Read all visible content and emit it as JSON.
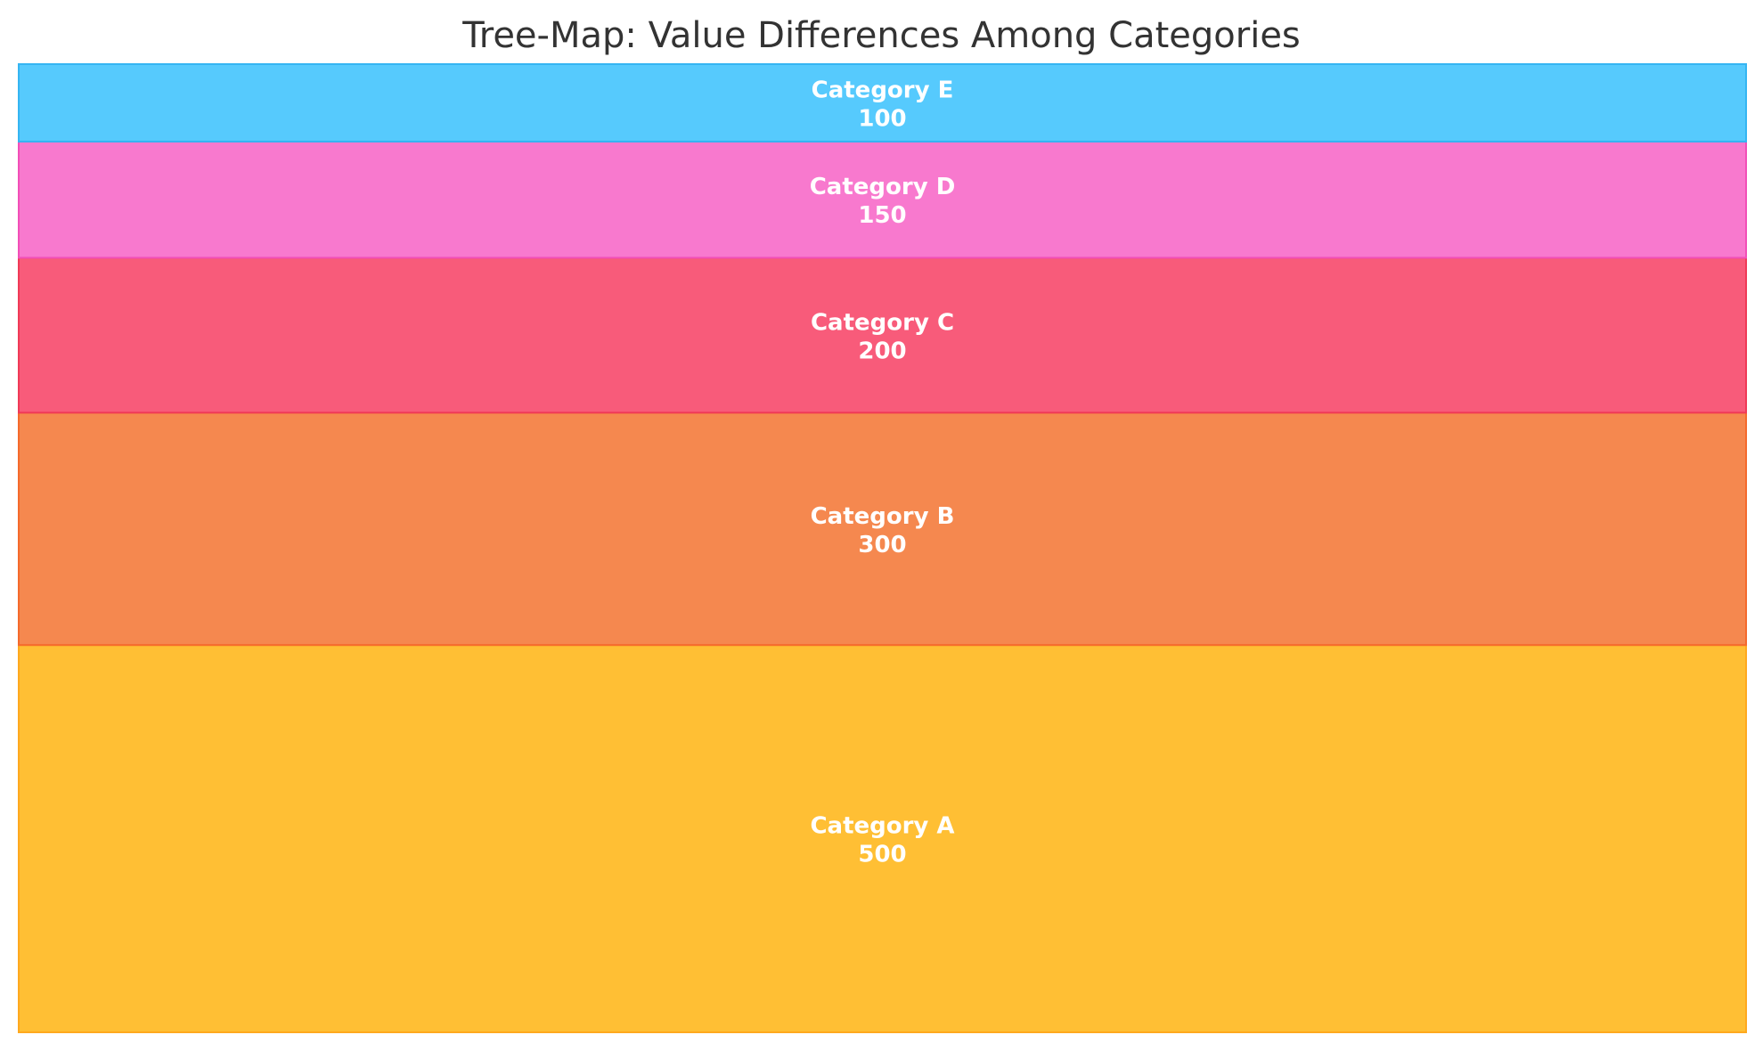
{
  "chart_data": {
    "type": "treemap",
    "title": "Tree-Map: Value Differences Among Categories",
    "categories": [
      "Category A",
      "Category B",
      "Category C",
      "Category D",
      "Category E"
    ],
    "values": [
      500,
      300,
      200,
      150,
      100
    ],
    "colors": {
      "Category A": {
        "fill": "#FFBF34",
        "stroke": "#FFA91F"
      },
      "Category B": {
        "fill": "#F5884F",
        "stroke": "#F56A2C"
      },
      "Category C": {
        "fill": "#F85B7A",
        "stroke": "#F03A57"
      },
      "Category D": {
        "fill": "#F879CE",
        "stroke": "#F24FB8"
      },
      "Category E": {
        "fill": "#56CAFD",
        "stroke": "#35B5F2"
      }
    },
    "stacking": "bottom-to-top",
    "grid": false,
    "legend": "none"
  }
}
